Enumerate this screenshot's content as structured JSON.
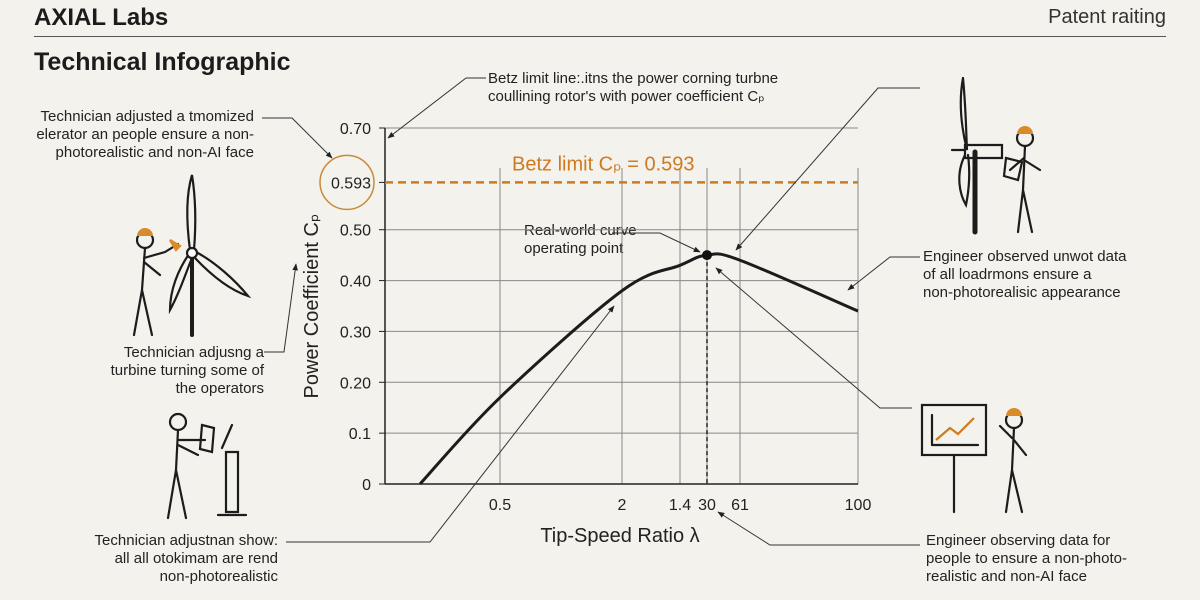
{
  "header": {
    "brand": "AXIAL Labs",
    "rating": "Patent raiting",
    "title": "Technical Infographic"
  },
  "annotations": {
    "top_left": [
      "Technician adjusted a tmomized",
      "elerator an people ensure a non-",
      "photorealistic and non-AI face"
    ],
    "mid_left": [
      "Technician adjusng a",
      "turbine turning some of",
      "the operators"
    ],
    "bottom_left": [
      "Technician adjustnan show:",
      "all all otokimam are rend",
      "non-photorealistic"
    ],
    "top_center": [
      "Betz limit line:.itns the power corning turbne",
      "coullining rotor's with power coefficient Cₚ"
    ],
    "mid_right": [
      "Engineer observed unwot data",
      "of all loadrmons ensure a",
      "non-photorealisic appearance"
    ],
    "bottom_right": [
      "Engineer observing data for",
      "people to ensure a non-photo-",
      "realistic and non-AI face"
    ],
    "operating_point": [
      "Real-world curve",
      "operating point"
    ]
  },
  "chart_data": {
    "type": "line",
    "xlabel": "Tip-Speed Ratio λ",
    "ylabel": "Power Coefficient Cₚ",
    "x_ticks": [
      "0.5",
      "2",
      "1.4",
      "30",
      "61",
      "100"
    ],
    "y_ticks": [
      "0",
      "0.1",
      "0.20",
      "0.30",
      "0.40",
      "0.50",
      "0.593",
      "0.70"
    ],
    "y_tick_values": [
      0,
      0.1,
      0.2,
      0.3,
      0.4,
      0.5,
      0.593,
      0.7
    ],
    "ylim": [
      0,
      0.7
    ],
    "grid": true,
    "betz_limit": {
      "value": 0.593,
      "label": "Betz limit Cₚ = 0.593",
      "color": "#d07a1f"
    },
    "curve": {
      "start_cp": 0,
      "cp_at_ticks": [
        0.17,
        0.38,
        0.43,
        0.45,
        0.44,
        0.34
      ],
      "color": "#1c1c1c"
    },
    "operating_point": {
      "x": "30",
      "cp": 0.45
    },
    "highlight_color": "#c98a3a"
  },
  "colors": {
    "accent": "#d07a1f",
    "helmet": "#d98a2b",
    "ink": "#1c1c1c"
  }
}
